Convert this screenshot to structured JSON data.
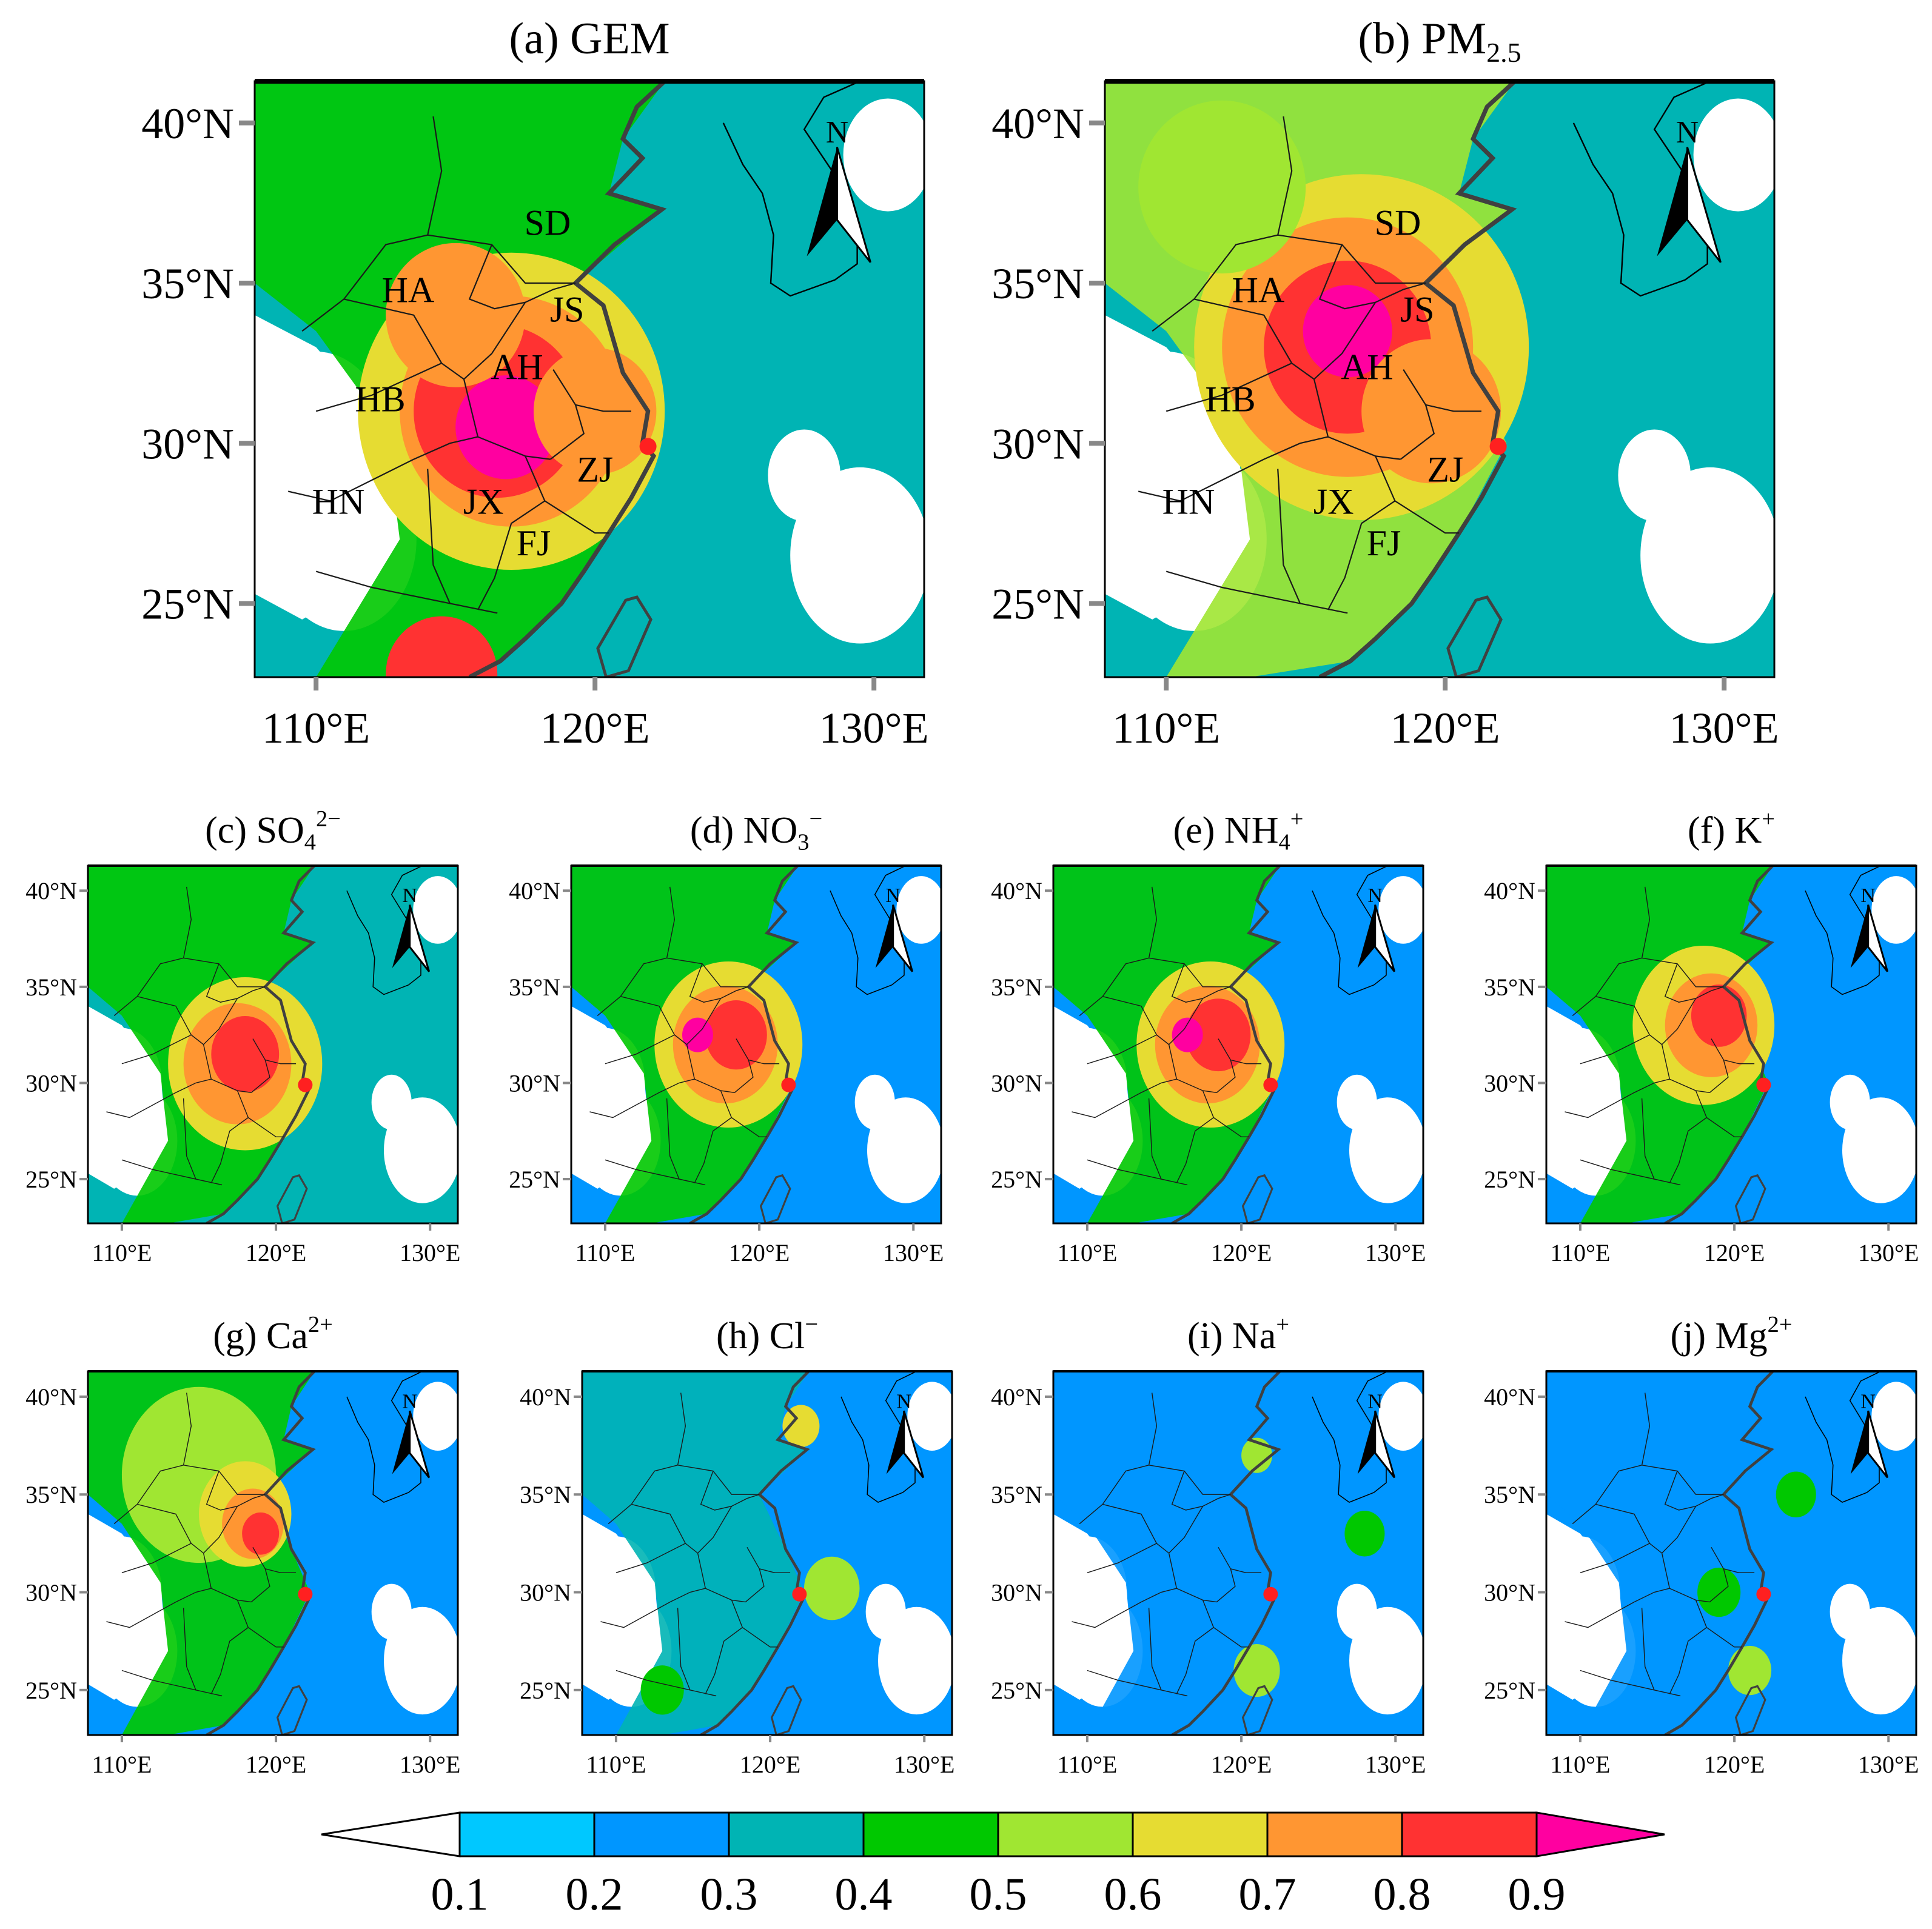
{
  "panels": [
    {
      "id": "a",
      "label": "(a)",
      "species": "GEM",
      "sub": "",
      "sup": ""
    },
    {
      "id": "b",
      "label": "(b)",
      "species": "PM",
      "sub": "2.5",
      "sup": ""
    },
    {
      "id": "c",
      "label": "(c)",
      "species": "SO",
      "sub": "4",
      "sup": "2−"
    },
    {
      "id": "d",
      "label": "(d)",
      "species": "NO",
      "sub": "3",
      "sup": "−"
    },
    {
      "id": "e",
      "label": "(e)",
      "species": "NH",
      "sub": "4",
      "sup": "+"
    },
    {
      "id": "f",
      "label": "(f)",
      "species": "K",
      "sub": "",
      "sup": "+"
    },
    {
      "id": "g",
      "label": "(g)",
      "species": "Ca",
      "sub": "",
      "sup": "2+"
    },
    {
      "id": "h",
      "label": "(h)",
      "species": "Cl",
      "sub": "",
      "sup": "−"
    },
    {
      "id": "i",
      "label": "(i)",
      "species": "Na",
      "sub": "",
      "sup": "+"
    },
    {
      "id": "j",
      "label": "(j)",
      "species": "Mg",
      "sub": "",
      "sup": "2+"
    }
  ],
  "axes": {
    "lat_labels": [
      "40°N",
      "35°N",
      "30°N",
      "25°N"
    ],
    "lon_labels": [
      "110°E",
      "120°E",
      "130°E"
    ],
    "lat_values": [
      40,
      35,
      30,
      25
    ],
    "lon_values": [
      110,
      120,
      130
    ],
    "lat_range": [
      22.7,
      41.3
    ],
    "lon_range": [
      107.8,
      131.8
    ]
  },
  "north_arrow": "N",
  "receptor_site": {
    "lon": 121.9,
    "lat": 29.9,
    "color": "#ff2020"
  },
  "provinces": [
    "SD",
    "HA",
    "JS",
    "AH",
    "HB",
    "ZJ",
    "HN",
    "JX",
    "FJ"
  ],
  "colorbar": {
    "colors": [
      "#ffffff",
      "#00c8ff",
      "#0096ff",
      "#00b4b4",
      "#00c800",
      "#a0e632",
      "#e6dc32",
      "#ff9632",
      "#ff3232",
      "#ff00a0"
    ],
    "ticks": [
      "0.1",
      "0.2",
      "0.3",
      "0.4",
      "0.5",
      "0.6",
      "0.7",
      "0.8",
      "0.9"
    ]
  },
  "palette": {
    "land_white": "#ffffff",
    "coast": "#404040",
    "frame": "#000000"
  }
}
